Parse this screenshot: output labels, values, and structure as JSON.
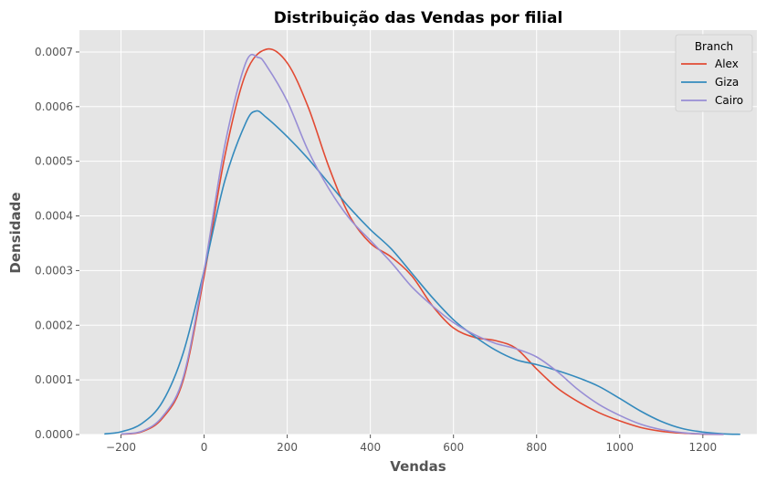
{
  "chart_data": {
    "type": "line",
    "title": "Distribuição das Vendas por filial",
    "xlabel": "Vendas",
    "ylabel": "Densidade",
    "xlim": [
      -300,
      1330
    ],
    "ylim": [
      0,
      0.00074
    ],
    "xticks": [
      -200,
      0,
      200,
      400,
      600,
      800,
      1000,
      1200
    ],
    "xtick_labels": [
      "−200",
      "0",
      "200",
      "400",
      "600",
      "800",
      "1000",
      "1200"
    ],
    "yticks": [
      0,
      0.0001,
      0.0002,
      0.0003,
      0.0004,
      0.0005,
      0.0006,
      0.0007
    ],
    "ytick_labels": [
      "0.0000",
      "0.0001",
      "0.0002",
      "0.0003",
      "0.0004",
      "0.0005",
      "0.0006",
      "0.0007"
    ],
    "grid": true,
    "legend": {
      "title": "Branch",
      "placement": "top-right"
    },
    "series": [
      {
        "name": "Alex",
        "color": "#E24A33",
        "points": [
          [
            -200,
            5e-07
          ],
          [
            -150,
            5e-06
          ],
          [
            -100,
            3e-05
          ],
          [
            -50,
            0.0001
          ],
          [
            0,
            0.00029
          ],
          [
            50,
            0.00051
          ],
          [
            100,
            0.00066
          ],
          [
            150,
            0.000705
          ],
          [
            200,
            0.00068
          ],
          [
            250,
            0.0006
          ],
          [
            300,
            0.00049
          ],
          [
            350,
            0.0004
          ],
          [
            400,
            0.00035
          ],
          [
            450,
            0.000325
          ],
          [
            500,
            0.00029
          ],
          [
            550,
            0.000235
          ],
          [
            600,
            0.000195
          ],
          [
            650,
            0.000178
          ],
          [
            700,
            0.000172
          ],
          [
            750,
            0.000158
          ],
          [
            800,
            0.00012
          ],
          [
            850,
            8.5e-05
          ],
          [
            900,
            6e-05
          ],
          [
            950,
            4e-05
          ],
          [
            1000,
            2.5e-05
          ],
          [
            1050,
            1.3e-05
          ],
          [
            1100,
            6e-06
          ],
          [
            1150,
            2.5e-06
          ],
          [
            1200,
            8e-07
          ],
          [
            1250,
            2e-07
          ]
        ]
      },
      {
        "name": "Giza",
        "color": "#348ABD",
        "points": [
          [
            -240,
            1e-06
          ],
          [
            -200,
            5e-06
          ],
          [
            -150,
            2e-05
          ],
          [
            -100,
            6e-05
          ],
          [
            -50,
            0.00015
          ],
          [
            0,
            0.0003
          ],
          [
            50,
            0.000465
          ],
          [
            100,
            0.00057
          ],
          [
            125,
            0.000592
          ],
          [
            150,
            0.00058
          ],
          [
            200,
            0.000545
          ],
          [
            250,
            0.000505
          ],
          [
            300,
            0.00046
          ],
          [
            350,
            0.000415
          ],
          [
            400,
            0.000375
          ],
          [
            450,
            0.00034
          ],
          [
            500,
            0.000295
          ],
          [
            550,
            0.00025
          ],
          [
            600,
            0.00021
          ],
          [
            650,
            0.00018
          ],
          [
            700,
            0.000155
          ],
          [
            750,
            0.000137
          ],
          [
            800,
            0.000128
          ],
          [
            850,
            0.000117
          ],
          [
            900,
            0.000104
          ],
          [
            950,
            8.8e-05
          ],
          [
            1000,
            6.6e-05
          ],
          [
            1050,
            4.3e-05
          ],
          [
            1100,
            2.4e-05
          ],
          [
            1150,
            1.1e-05
          ],
          [
            1200,
            4.5e-06
          ],
          [
            1250,
            1.2e-06
          ],
          [
            1290,
            4e-07
          ]
        ]
      },
      {
        "name": "Cairo",
        "color": "#988ED5",
        "points": [
          [
            -200,
            1e-06
          ],
          [
            -150,
            6e-06
          ],
          [
            -100,
            3.3e-05
          ],
          [
            -50,
            0.000105
          ],
          [
            0,
            0.0003
          ],
          [
            50,
            0.00053
          ],
          [
            100,
            0.00068
          ],
          [
            130,
            0.00069
          ],
          [
            150,
            0.000675
          ],
          [
            200,
            0.00061
          ],
          [
            250,
            0.00052
          ],
          [
            300,
            0.00045
          ],
          [
            350,
            0.000395
          ],
          [
            400,
            0.000355
          ],
          [
            450,
            0.000315
          ],
          [
            500,
            0.00027
          ],
          [
            550,
            0.000235
          ],
          [
            600,
            0.000205
          ],
          [
            650,
            0.000183
          ],
          [
            700,
            0.000167
          ],
          [
            750,
            0.000157
          ],
          [
            800,
            0.000142
          ],
          [
            850,
            0.000115
          ],
          [
            900,
            8.2e-05
          ],
          [
            950,
            5.5e-05
          ],
          [
            1000,
            3.5e-05
          ],
          [
            1050,
            1.9e-05
          ],
          [
            1100,
            9e-06
          ],
          [
            1150,
            3.5e-06
          ],
          [
            1200,
            1.1e-06
          ],
          [
            1250,
            2e-07
          ]
        ]
      }
    ]
  }
}
